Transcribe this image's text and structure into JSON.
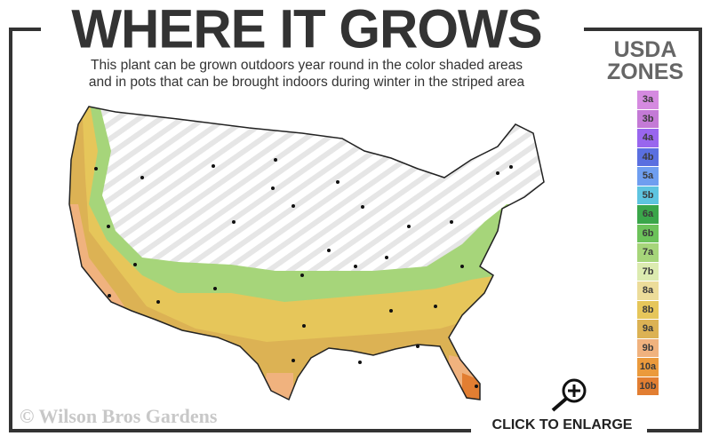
{
  "header": {
    "title": "WHERE IT GROWS",
    "subtitle_line1": "This plant can be grown outdoors year round in the color shaded areas",
    "subtitle_line2": "and in pots that can be brought indoors during winter in the striped area"
  },
  "legend": {
    "title_line1": "USDA",
    "title_line2": "ZONES",
    "zones": [
      {
        "label": "3a",
        "color": "#d58ae0"
      },
      {
        "label": "3b",
        "color": "#c47ad6"
      },
      {
        "label": "4a",
        "color": "#9966ee"
      },
      {
        "label": "4b",
        "color": "#5a6fe0"
      },
      {
        "label": "5a",
        "color": "#6f9ef0"
      },
      {
        "label": "5b",
        "color": "#5ec4e0"
      },
      {
        "label": "6a",
        "color": "#3aa64a"
      },
      {
        "label": "6b",
        "color": "#6cc25a"
      },
      {
        "label": "7a",
        "color": "#a6d57a"
      },
      {
        "label": "7b",
        "color": "#dcebb0"
      },
      {
        "label": "8a",
        "color": "#ecdc9a"
      },
      {
        "label": "8b",
        "color": "#e6c65a"
      },
      {
        "label": "9a",
        "color": "#dcb254"
      },
      {
        "label": "9b",
        "color": "#f0b27e"
      },
      {
        "label": "10a",
        "color": "#eb9a3c"
      },
      {
        "label": "10b",
        "color": "#e27e32"
      }
    ]
  },
  "footer": {
    "copyright": "© Wilson Bros Gardens",
    "enlarge_label": "CLICK TO ENLARGE"
  },
  "icons": {
    "enlarge": "zoom-in-magnifier-icon"
  }
}
